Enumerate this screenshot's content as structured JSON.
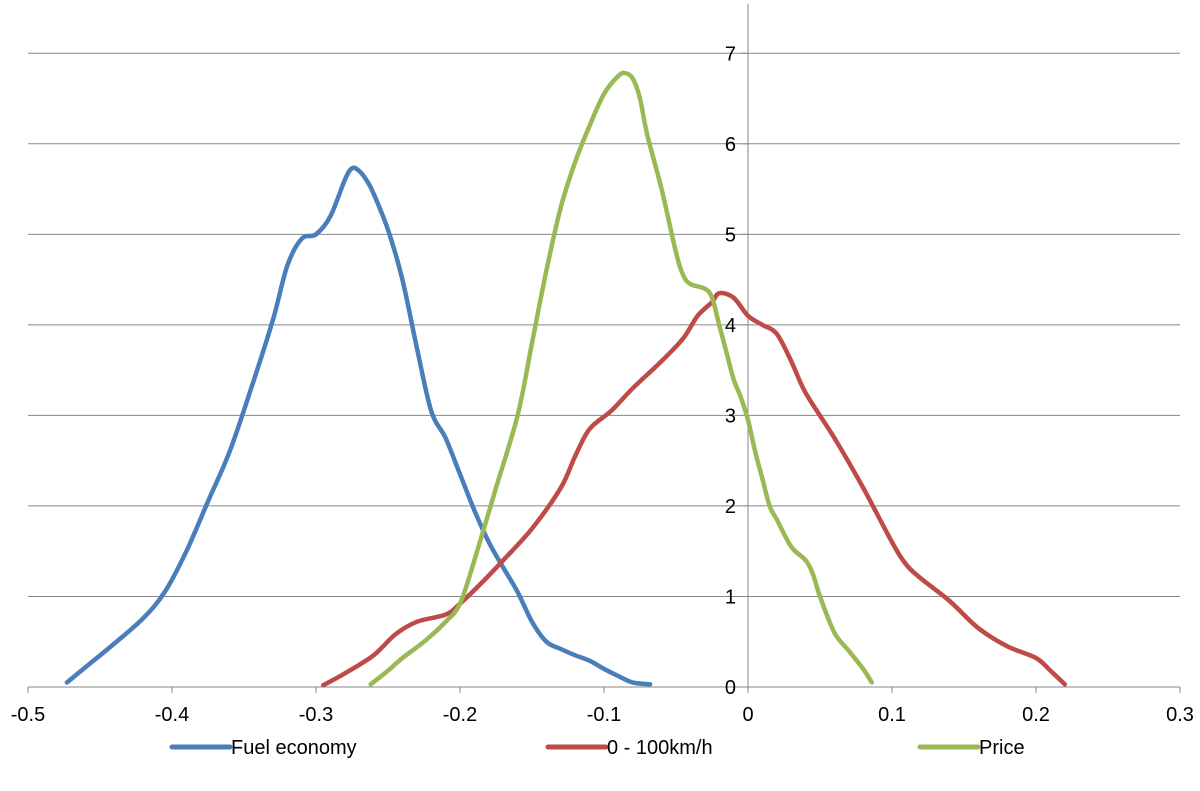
{
  "chart_data": {
    "type": "line",
    "title": "",
    "xlabel": "",
    "ylabel": "",
    "xlim": [
      -0.5,
      0.3
    ],
    "ylim": [
      0,
      7.5
    ],
    "xticks": [
      -0.5,
      -0.4,
      -0.3,
      -0.2,
      -0.1,
      0,
      0.1,
      0.2,
      0.3
    ],
    "xtick_labels": [
      "-0.5",
      "-0.4",
      "-0.3",
      "-0.2",
      "-0.1",
      "0",
      "0.1",
      "0.2",
      "0.3"
    ],
    "yticks": [
      0,
      1,
      2,
      3,
      4,
      5,
      6,
      7
    ],
    "ytick_labels": [
      "0",
      "1",
      "2",
      "3",
      "4",
      "5",
      "6",
      "7"
    ],
    "grid": "horizontal",
    "legend_position": "bottom",
    "series": [
      {
        "name": "Fuel economy",
        "color": "#4A7EBB",
        "x": [
          -0.473,
          -0.46,
          -0.44,
          -0.42,
          -0.405,
          -0.39,
          -0.375,
          -0.36,
          -0.345,
          -0.33,
          -0.32,
          -0.31,
          -0.3,
          -0.29,
          -0.28,
          -0.275,
          -0.27,
          -0.265,
          -0.26,
          -0.25,
          -0.24,
          -0.23,
          -0.22,
          -0.21,
          -0.2,
          -0.19,
          -0.18,
          -0.17,
          -0.16,
          -0.15,
          -0.14,
          -0.13,
          -0.12,
          -0.11,
          -0.1,
          -0.09,
          -0.08,
          -0.068
        ],
        "y": [
          0.05,
          0.22,
          0.48,
          0.76,
          1.05,
          1.5,
          2.05,
          2.6,
          3.3,
          4.05,
          4.65,
          4.95,
          5.0,
          5.2,
          5.6,
          5.73,
          5.7,
          5.6,
          5.45,
          5.05,
          4.5,
          3.75,
          3.05,
          2.75,
          2.35,
          1.95,
          1.6,
          1.32,
          1.05,
          0.72,
          0.5,
          0.42,
          0.35,
          0.29,
          0.2,
          0.12,
          0.05,
          0.03
        ],
        "legend_label": "Fuel economy"
      },
      {
        "name": "0 - 100km/h",
        "color": "#BE4B48",
        "x": [
          -0.295,
          -0.28,
          -0.26,
          -0.245,
          -0.23,
          -0.21,
          -0.2,
          -0.185,
          -0.17,
          -0.15,
          -0.13,
          -0.12,
          -0.11,
          -0.095,
          -0.08,
          -0.06,
          -0.045,
          -0.035,
          -0.025,
          -0.02,
          -0.01,
          0.0,
          0.01,
          0.02,
          0.03,
          0.04,
          0.06,
          0.08,
          0.1,
          0.11,
          0.12,
          0.14,
          0.16,
          0.18,
          0.2,
          0.21,
          0.22
        ],
        "y": [
          0.02,
          0.15,
          0.35,
          0.58,
          0.72,
          0.8,
          0.92,
          1.15,
          1.4,
          1.75,
          2.2,
          2.55,
          2.85,
          3.05,
          3.3,
          3.6,
          3.85,
          4.1,
          4.25,
          4.35,
          4.3,
          4.1,
          4.0,
          3.9,
          3.6,
          3.25,
          2.75,
          2.2,
          1.6,
          1.35,
          1.2,
          0.95,
          0.65,
          0.45,
          0.32,
          0.18,
          0.03
        ],
        "legend_label": "0 - 100km/h"
      },
      {
        "name": "Price",
        "color": "#98B954",
        "x": [
          -0.262,
          -0.25,
          -0.24,
          -0.225,
          -0.21,
          -0.2,
          -0.19,
          -0.175,
          -0.16,
          -0.15,
          -0.14,
          -0.13,
          -0.12,
          -0.11,
          -0.1,
          -0.09,
          -0.085,
          -0.08,
          -0.075,
          -0.07,
          -0.06,
          -0.05,
          -0.045,
          -0.04,
          -0.03,
          -0.025,
          -0.02,
          -0.015,
          -0.01,
          -0.005,
          0.0,
          0.005,
          0.01,
          0.015,
          0.02,
          0.03,
          0.04,
          0.045,
          0.05,
          0.06,
          0.07,
          0.08,
          0.086
        ],
        "y": [
          0.03,
          0.18,
          0.32,
          0.5,
          0.72,
          0.92,
          1.4,
          2.2,
          3.0,
          3.8,
          4.6,
          5.3,
          5.8,
          6.2,
          6.55,
          6.75,
          6.78,
          6.72,
          6.5,
          6.1,
          5.5,
          4.8,
          4.55,
          4.45,
          4.4,
          4.3,
          4.0,
          3.7,
          3.4,
          3.2,
          2.95,
          2.6,
          2.3,
          2.0,
          1.85,
          1.55,
          1.4,
          1.25,
          1.0,
          0.6,
          0.4,
          0.2,
          0.05
        ],
        "legend_label": "Price"
      }
    ]
  }
}
